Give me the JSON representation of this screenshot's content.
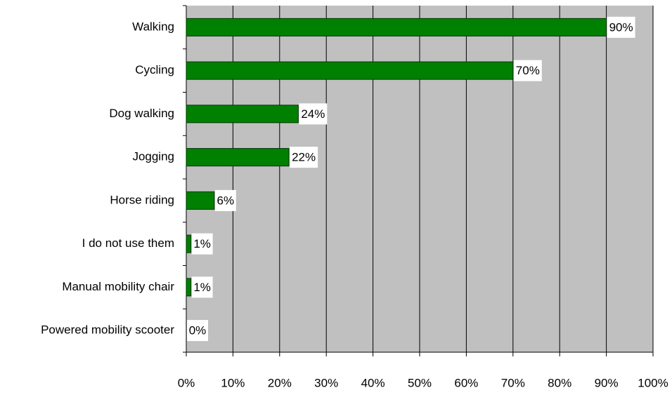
{
  "chart_data": {
    "type": "bar",
    "orientation": "horizontal",
    "categories": [
      "Walking",
      "Cycling",
      "Dog walking",
      "Jogging",
      "Horse riding",
      "I do not use them",
      "Manual mobility chair",
      "Powered mobility scooter"
    ],
    "values": [
      90,
      70,
      24,
      22,
      6,
      1,
      1,
      0
    ],
    "value_labels": [
      "90%",
      "70%",
      "24%",
      "22%",
      "6%",
      "1%",
      "1%",
      "0%"
    ],
    "color": "#008000",
    "xlim": [
      0,
      100
    ],
    "xticks": [
      {
        "value": 0,
        "label": "0%"
      },
      {
        "value": 10,
        "label": "10%"
      },
      {
        "value": 20,
        "label": "20%"
      },
      {
        "value": 30,
        "label": "30%"
      },
      {
        "value": 40,
        "label": "40%"
      },
      {
        "value": 50,
        "label": "50%"
      },
      {
        "value": 60,
        "label": "60%"
      },
      {
        "value": 70,
        "label": "70%"
      },
      {
        "value": 80,
        "label": "80%"
      },
      {
        "value": 90,
        "label": "90%"
      },
      {
        "value": 100,
        "label": "100%"
      }
    ],
    "grid": true
  }
}
